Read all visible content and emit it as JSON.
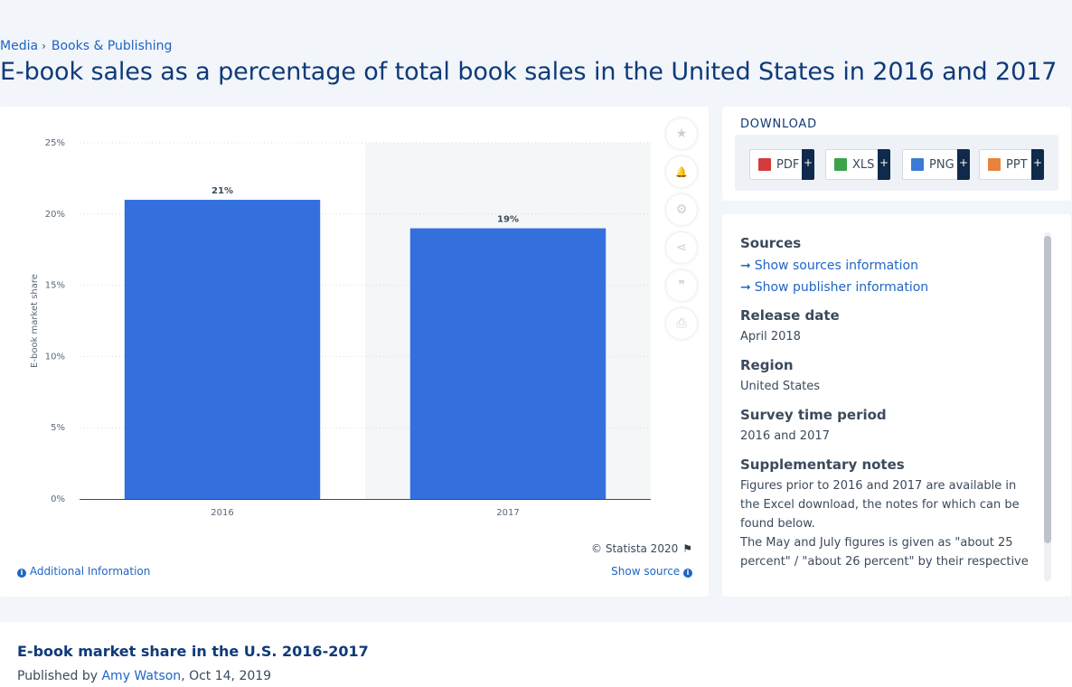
{
  "breadcrumb": {
    "items": [
      "Media",
      "Books & Publishing"
    ],
    "separator": "›"
  },
  "page_title": "E-book sales as a percentage of total book sales in the United States in 2016 and 2017",
  "chart_data": {
    "type": "bar",
    "categories": [
      "2016",
      "2017"
    ],
    "values": [
      21,
      19
    ],
    "value_labels": [
      "21%",
      "19%"
    ],
    "ylabel": "E-book market share",
    "xlabel": "",
    "ylim": [
      0,
      25
    ],
    "yticks": [
      0,
      5,
      10,
      15,
      20,
      25
    ],
    "ytick_labels": [
      "0%",
      "5%",
      "10%",
      "15%",
      "20%",
      "25%"
    ],
    "grid": true,
    "bar_color": "#3370dd",
    "highlight_color": "#f5f6f7"
  },
  "side_tools": [
    {
      "icon": "star-icon",
      "glyph": "★"
    },
    {
      "icon": "bell-icon",
      "glyph": "🔔"
    },
    {
      "icon": "gear-icon",
      "glyph": "⚙"
    },
    {
      "icon": "share-icon",
      "glyph": "⋖"
    },
    {
      "icon": "quote-icon",
      "glyph": "❞"
    },
    {
      "icon": "print-icon",
      "glyph": "⎙"
    }
  ],
  "chart_footer": {
    "copyright": "© Statista 2020",
    "flag_icon": "flag-icon",
    "additional_info": "Additional Information",
    "show_source": "Show source"
  },
  "download": {
    "title": "DOWNLOAD",
    "buttons": [
      {
        "label": "PDF",
        "color": "#d63a3a",
        "icon": "pdf-file-icon"
      },
      {
        "label": "XLS",
        "color": "#3aa24a",
        "icon": "xls-file-icon"
      },
      {
        "label": "PNG",
        "color": "#3a7bd5",
        "icon": "png-file-icon"
      },
      {
        "label": "PPT",
        "color": "#e8833a",
        "icon": "ppt-file-icon"
      }
    ],
    "plus": "+"
  },
  "meta": {
    "sources_label": "Sources",
    "show_sources": "Show sources information",
    "show_publisher": "Show publisher information",
    "release_label": "Release date",
    "release_value": "April 2018",
    "region_label": "Region",
    "region_value": "United States",
    "survey_label": "Survey time period",
    "survey_value": "2016 and 2017",
    "notes_label": "Supplementary notes",
    "notes_value_1": "Figures prior to 2016 and 2017 are available in the Excel download, the notes for which can be found below.",
    "notes_value_2": "The May and July figures is given as \"about 25 percent\" / \"about 26 percent\" by their respective"
  },
  "bottom": {
    "title": "E-book market share in the U.S. 2016-2017",
    "published_by": "Published by",
    "author": "Amy Watson",
    "date": ", Oct 14, 2019"
  }
}
